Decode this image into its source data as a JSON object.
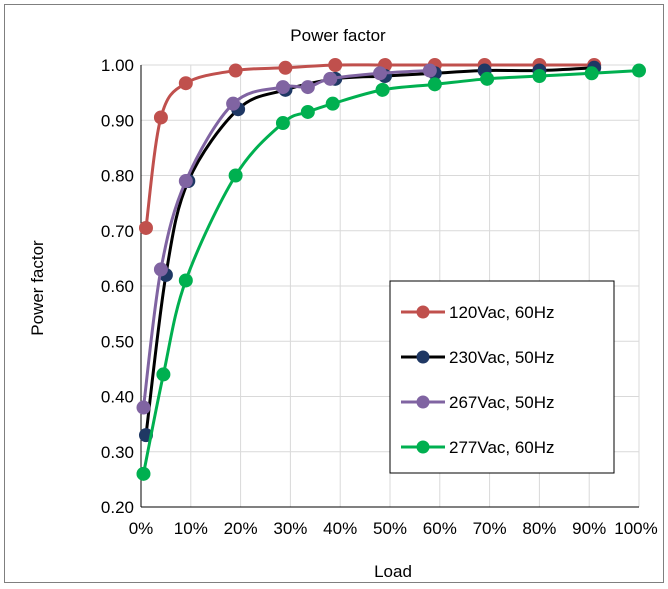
{
  "chart_data": {
    "type": "line",
    "title": "Power factor",
    "xlabel": "Load",
    "ylabel": "Power factor",
    "xlim": [
      0,
      100
    ],
    "ylim": [
      0.2,
      1.0
    ],
    "x_ticks": [
      "0%",
      "10%",
      "20%",
      "30%",
      "40%",
      "50%",
      "60%",
      "70%",
      "80%",
      "90%",
      "100%"
    ],
    "y_ticks": [
      "0.20",
      "0.30",
      "0.40",
      "0.50",
      "0.60",
      "0.70",
      "0.80",
      "0.90",
      "1.00"
    ],
    "grid": true,
    "legend_position": "bottom-right",
    "series": [
      {
        "name": "120Vac, 60Hz",
        "color": "#c0504d",
        "x": [
          1,
          4,
          9,
          19,
          29,
          39,
          49,
          59,
          69,
          80,
          91
        ],
        "y": [
          0.705,
          0.905,
          0.967,
          0.99,
          0.995,
          1.0,
          1.0,
          1.0,
          1.0,
          1.0,
          1.0
        ]
      },
      {
        "name": "230Vac, 50Hz",
        "color": "#000000",
        "marker_color": "#1f3864",
        "x": [
          1,
          5,
          9.5,
          19.5,
          29,
          39,
          49,
          59,
          69,
          80,
          91
        ],
        "y": [
          0.33,
          0.62,
          0.79,
          0.92,
          0.955,
          0.975,
          0.98,
          0.985,
          0.99,
          0.99,
          0.995
        ]
      },
      {
        "name": "267Vac, 50Hz",
        "color": "#8064a2",
        "x": [
          0.5,
          4,
          9,
          18.5,
          28.5,
          33.5,
          38,
          48,
          58
        ],
        "y": [
          0.38,
          0.63,
          0.79,
          0.93,
          0.96,
          0.96,
          0.975,
          0.985,
          0.99
        ]
      },
      {
        "name": "277Vac, 60Hz",
        "color": "#00b050",
        "x": [
          0.5,
          4.5,
          9,
          19,
          28.5,
          33.5,
          38.5,
          48.5,
          59,
          69.5,
          80,
          90.5,
          100
        ],
        "y": [
          0.26,
          0.44,
          0.61,
          0.8,
          0.895,
          0.915,
          0.93,
          0.955,
          0.965,
          0.975,
          0.98,
          0.985,
          0.99
        ]
      }
    ]
  }
}
